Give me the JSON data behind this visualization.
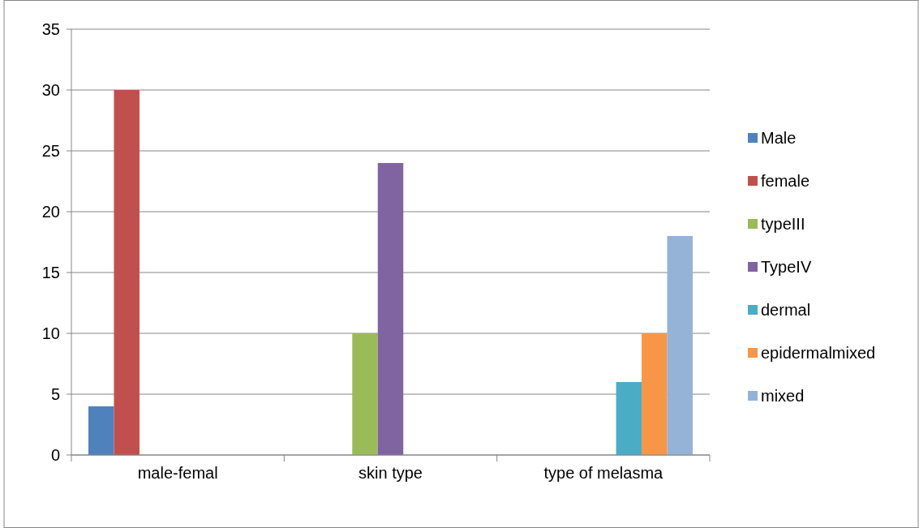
{
  "chart_data": {
    "type": "bar",
    "categories": [
      "male-femal",
      "skin type",
      "type of melasma"
    ],
    "series": [
      {
        "name": "Male",
        "color": "#4f81bd",
        "values": [
          4,
          null,
          null
        ]
      },
      {
        "name": "female",
        "color": "#c0504d",
        "values": [
          30,
          null,
          null
        ]
      },
      {
        "name": "typeIII",
        "color": "#9bbb59",
        "values": [
          null,
          10,
          null
        ]
      },
      {
        "name": "TypeIV",
        "color": "#8064a2",
        "values": [
          null,
          24,
          null
        ]
      },
      {
        "name": "dermal",
        "color": "#4bacc6",
        "values": [
          null,
          null,
          6
        ]
      },
      {
        "name": "epidermalmixed",
        "color": "#f79646",
        "values": [
          null,
          null,
          10
        ]
      },
      {
        "name": "mixed",
        "color": "#95b3d7",
        "values": [
          null,
          null,
          18
        ]
      }
    ],
    "ylim": [
      0,
      35
    ],
    "yticks": [
      0,
      5,
      10,
      15,
      20,
      25,
      30,
      35
    ],
    "grid": "y",
    "legend": "right"
  }
}
